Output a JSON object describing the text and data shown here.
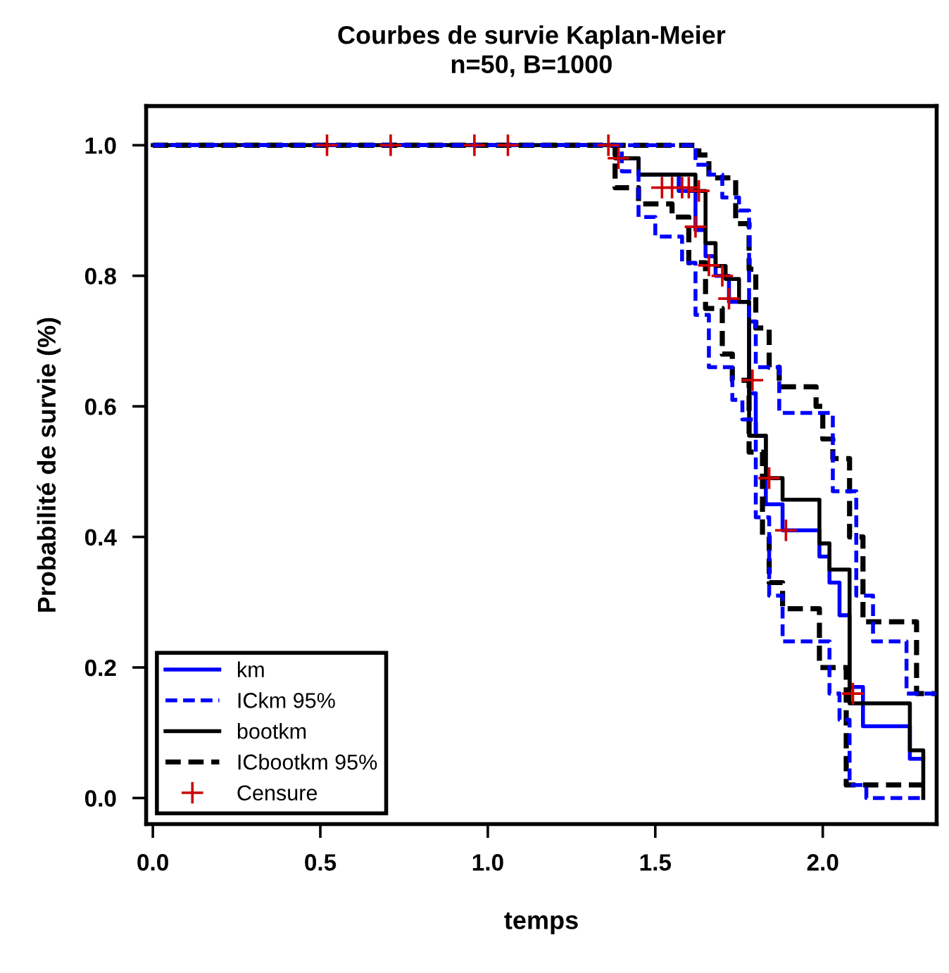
{
  "chart_data": {
    "type": "step",
    "title": "Courbes de survie Kaplan-Meier",
    "subtitle": "n=50, B=1000",
    "xlabel": "temps",
    "ylabel": "Probabilité de survie (%)",
    "xlim": [
      -0.02,
      2.34
    ],
    "ylim": [
      -0.04,
      1.06
    ],
    "xticks": [
      {
        "value": 0,
        "label": "0.0"
      },
      {
        "value": 0.5,
        "label": "0.5"
      },
      {
        "value": 1,
        "label": "1.0"
      },
      {
        "value": 1.5,
        "label": "1.5"
      },
      {
        "value": 2,
        "label": "2.0"
      }
    ],
    "yticks": [
      {
        "value": 0,
        "label": "0.0"
      },
      {
        "value": 0.2,
        "label": "0.2"
      },
      {
        "value": 0.4,
        "label": "0.4"
      },
      {
        "value": 0.6,
        "label": "0.6"
      },
      {
        "value": 0.8,
        "label": "0.8"
      },
      {
        "value": 1,
        "label": "1.0"
      }
    ],
    "grid": false,
    "legend": "bottom left",
    "series": [
      {
        "name": "km",
        "color": "#0000ff",
        "line_style": "solid",
        "x": [
          0,
          1.38,
          1.45,
          1.57,
          1.62,
          1.65,
          1.68,
          1.72,
          1.78,
          1.8,
          1.83,
          1.88,
          1.99,
          2.02,
          2.05,
          2.08,
          2.12,
          2.26,
          2.3
        ],
        "values": [
          1,
          0.98,
          0.955,
          0.93,
          0.87,
          0.83,
          0.8,
          0.76,
          0.62,
          0.555,
          0.45,
          0.41,
          0.37,
          0.33,
          0.28,
          0.17,
          0.11,
          0.06,
          0.06
        ]
      },
      {
        "name": "ICkm 95%",
        "color": "#0000ff",
        "line_style": "dashed",
        "x": [
          0,
          1.62,
          1.66,
          1.7,
          1.75,
          1.78,
          1.8,
          1.87,
          1.99,
          2.03,
          2.1,
          2.15,
          2.25,
          2.34
        ],
        "values": [
          1,
          0.97,
          0.955,
          0.92,
          0.9,
          0.73,
          0.66,
          0.59,
          0.59,
          0.47,
          0.31,
          0.24,
          0.16,
          0.16
        ]
      },
      {
        "color": "#0000ff",
        "line_style": "dashed",
        "x": [
          0,
          1.4,
          1.45,
          1.5,
          1.58,
          1.62,
          1.66,
          1.73,
          1.76,
          1.8,
          1.84,
          1.88,
          1.98,
          2.02,
          2.05,
          2.08,
          2.13,
          2.3
        ],
        "values": [
          1,
          0.96,
          0.89,
          0.86,
          0.82,
          0.74,
          0.66,
          0.61,
          0.58,
          0.43,
          0.31,
          0.24,
          0.24,
          0.16,
          0.12,
          0.02,
          0,
          0
        ]
      },
      {
        "name": "bootkm",
        "color": "#000000",
        "line_style": "solid",
        "x": [
          0,
          1.38,
          1.45,
          1.62,
          1.65,
          1.68,
          1.71,
          1.75,
          1.78,
          1.83,
          1.88,
          1.99,
          2.02,
          2.08,
          2.26,
          2.3
        ],
        "values": [
          1,
          0.98,
          0.955,
          0.93,
          0.85,
          0.815,
          0.795,
          0.76,
          0.555,
          0.49,
          0.457,
          0.39,
          0.35,
          0.145,
          0.073,
          0
        ]
      },
      {
        "name": "ICbootkm 95%",
        "color": "#000000",
        "line_style": "dashed",
        "x": [
          0,
          1.63,
          1.66,
          1.74,
          1.78,
          1.8,
          1.84,
          1.87,
          1.98,
          2,
          2.03,
          2.08,
          2.12,
          2.25,
          2.28,
          2.34
        ],
        "values": [
          1,
          0.985,
          0.95,
          0.88,
          0.81,
          0.72,
          0.66,
          0.63,
          0.6,
          0.55,
          0.52,
          0.4,
          0.27,
          0.27,
          0.16,
          0.16
        ]
      },
      {
        "color": "#000000",
        "line_style": "dashed",
        "x": [
          0,
          1.38,
          1.45,
          1.55,
          1.6,
          1.65,
          1.7,
          1.73,
          1.78,
          1.82,
          1.84,
          1.88,
          1.99,
          2.03,
          2.07,
          2.3
        ],
        "values": [
          1,
          0.935,
          0.91,
          0.89,
          0.82,
          0.75,
          0.68,
          0.64,
          0.53,
          0.4,
          0.33,
          0.29,
          0.2,
          0.2,
          0.02,
          0.02
        ]
      },
      {
        "name": "Censure",
        "type": "scatter",
        "color": "#cc0000",
        "marker": "cross",
        "x": [
          0.52,
          0.71,
          0.96,
          1.06,
          1.36,
          1.39,
          1.52,
          1.55,
          1.58,
          1.6,
          1.63,
          1.62,
          1.66,
          1.7,
          1.72,
          1.79,
          1.84,
          1.89,
          2.09
        ],
        "values": [
          1,
          1,
          1,
          1,
          1,
          0.98,
          0.935,
          0.935,
          0.935,
          0.935,
          0.93,
          0.875,
          0.816,
          0.8,
          0.765,
          0.64,
          0.49,
          0.41,
          0.16
        ]
      }
    ]
  }
}
